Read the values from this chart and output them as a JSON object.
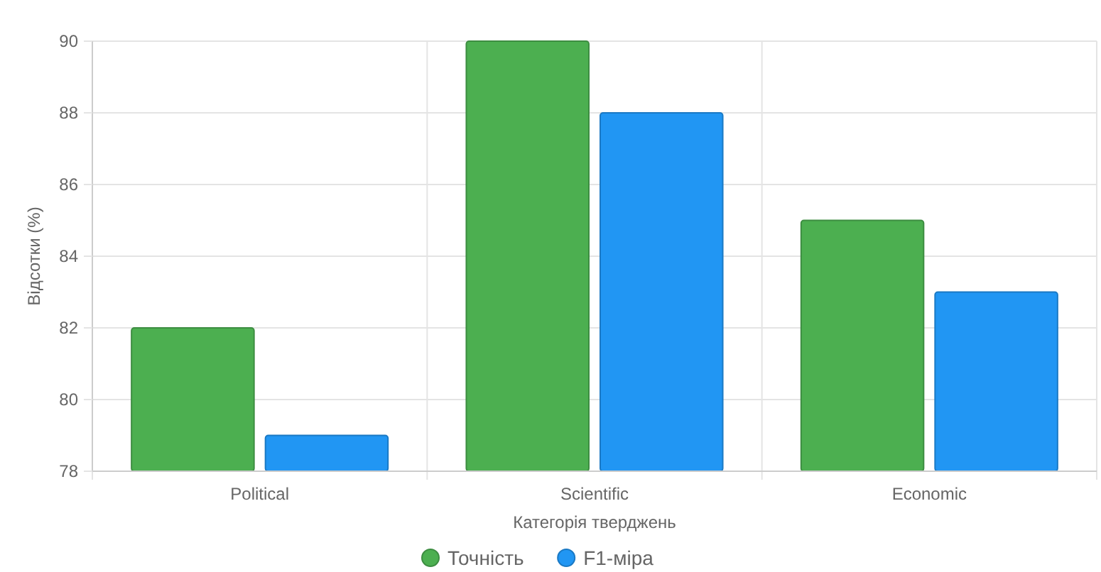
{
  "chart_data": {
    "type": "bar",
    "xlabel": "Категорія тверджень",
    "ylabel": "Відсотки (%)",
    "categories": [
      "Political",
      "Scientific",
      "Economic"
    ],
    "series": [
      {
        "name": "Точність",
        "color": "#4caf50",
        "values": [
          82,
          90,
          85
        ]
      },
      {
        "name": "F1-міра",
        "color": "#2196f3",
        "values": [
          79,
          88,
          83
        ]
      }
    ],
    "ylim": [
      78,
      90
    ],
    "yticks": [
      78,
      80,
      82,
      84,
      86,
      88,
      90
    ],
    "grid": true,
    "legend": "bottom"
  }
}
